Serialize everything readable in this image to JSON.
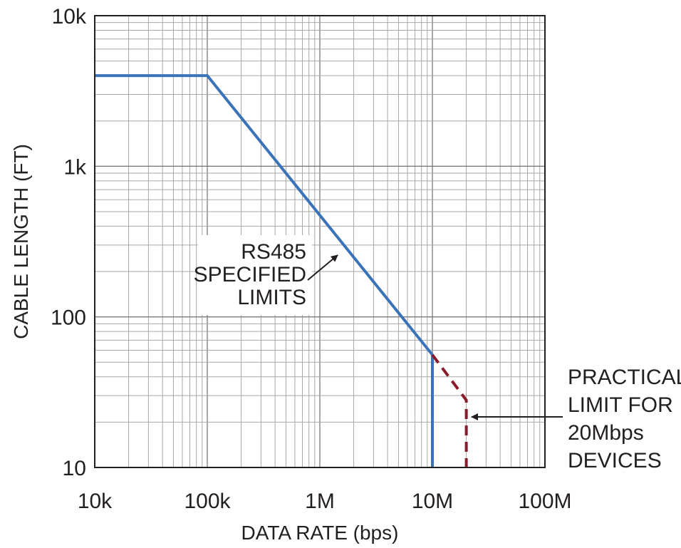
{
  "chart_data": {
    "type": "line",
    "title": "",
    "xlabel": "DATA RATE (bps)",
    "ylabel": "CABLE LENGTH (FT)",
    "xscale": "log",
    "yscale": "log",
    "xlim": [
      10000,
      100000000
    ],
    "ylim": [
      10,
      10000
    ],
    "grid": true,
    "x_ticks": [
      {
        "value": 10000,
        "label": "10k"
      },
      {
        "value": 100000,
        "label": "100k"
      },
      {
        "value": 1000000,
        "label": "1M"
      },
      {
        "value": 10000000,
        "label": "10M"
      },
      {
        "value": 100000000,
        "label": "100M"
      }
    ],
    "y_ticks": [
      {
        "value": 10,
        "label": "10"
      },
      {
        "value": 100,
        "label": "100"
      },
      {
        "value": 1000,
        "label": "1k"
      },
      {
        "value": 10000,
        "label": "10k"
      }
    ],
    "series": [
      {
        "color": "#3b73b9",
        "style": "solid",
        "points": [
          [
            10000,
            4000
          ],
          [
            100000,
            4000
          ],
          [
            10000000,
            56
          ],
          [
            10000000,
            10
          ]
        ]
      },
      {
        "color": "#8b1a2b",
        "style": "dashed",
        "points": [
          [
            10000000,
            56
          ],
          [
            20000000,
            28
          ],
          [
            20000000,
            10
          ]
        ]
      }
    ],
    "annotations": [
      {
        "lines": [
          "RS485",
          "SPECIFIED",
          "LIMITS"
        ],
        "points_to": [
          1800000,
          260
        ]
      },
      {
        "lines": [
          "PRACTICAL",
          "LIMIT FOR",
          "20Mbps",
          "DEVICES"
        ],
        "points_to": [
          20000000,
          20
        ]
      }
    ]
  }
}
